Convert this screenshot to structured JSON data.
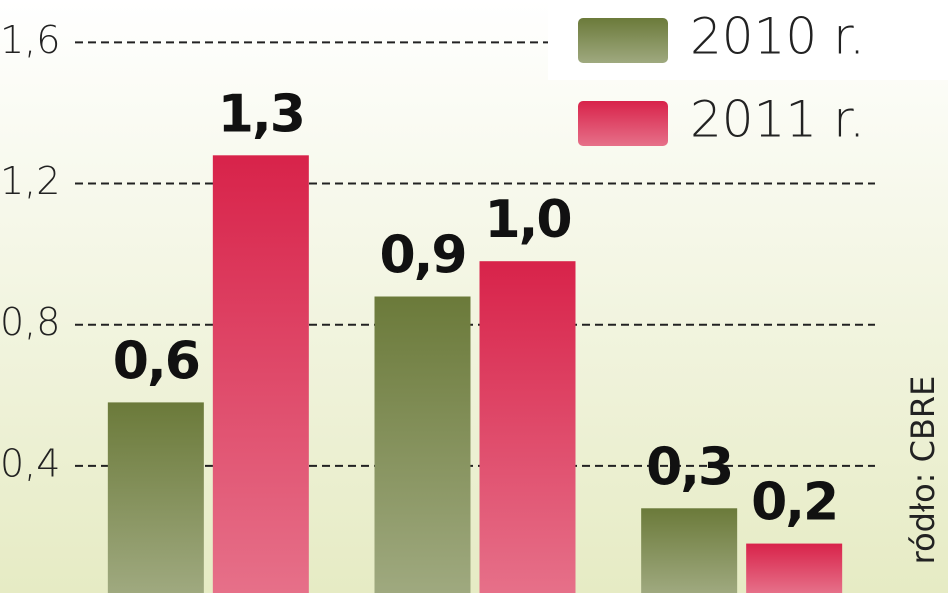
{
  "chart_data": {
    "type": "bar",
    "categories": [
      null,
      null,
      null
    ],
    "series": [
      {
        "name": "2010 r.",
        "color": "#6b7a3a",
        "values": [
          0.58,
          0.88,
          0.28
        ],
        "value_labels": [
          "0,6",
          "0,9",
          "0,3"
        ]
      },
      {
        "name": "2011 r.",
        "color": "#d8234a",
        "values": [
          1.28,
          0.98,
          0.18
        ],
        "value_labels": [
          "1,3",
          "1,0",
          "0,2"
        ]
      }
    ],
    "ylim": [
      0.04,
      1.72
    ],
    "yticks": [
      {
        "value": 0.4,
        "label": "0,4"
      },
      {
        "value": 0.8,
        "label": "0,8"
      },
      {
        "value": 1.2,
        "label": "1,2"
      },
      {
        "value": 1.6,
        "label": "1,6"
      }
    ],
    "grid": true,
    "legend": "top-right",
    "source": "ródło: CBRE"
  }
}
